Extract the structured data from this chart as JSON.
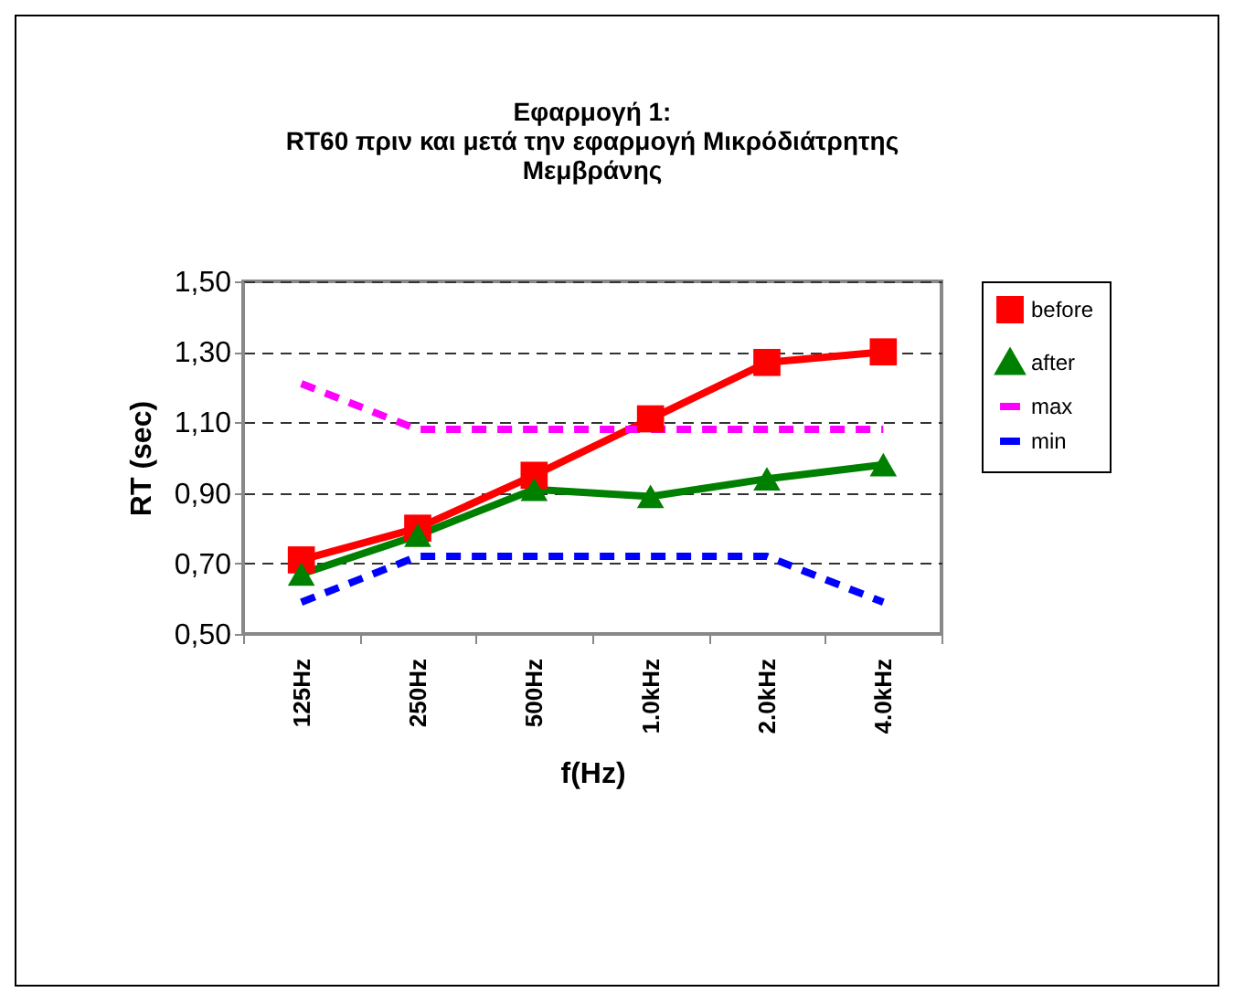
{
  "chart_data": {
    "type": "line",
    "title": "Εφαρμογή 1:\nRT60 πριν και μετά την εφαρμογή Μικρόδιάτρητης\nΜεμβράνης",
    "xlabel": "f(Hz)",
    "ylabel": "RT (sec)",
    "categories": [
      "125Hz",
      "250Hz",
      "500Hz",
      "1.0kHz",
      "2.0kHz",
      "4.0kHz"
    ],
    "series": [
      {
        "name": "before",
        "color": "#ff0000",
        "marker": "square",
        "line_style": "solid",
        "values": [
          0.71,
          0.8,
          0.95,
          1.11,
          1.27,
          1.3
        ]
      },
      {
        "name": "after",
        "color": "#008000",
        "marker": "triangle",
        "line_style": "solid",
        "values": [
          0.67,
          0.78,
          0.91,
          0.89,
          0.94,
          0.98
        ]
      },
      {
        "name": "max",
        "color": "#ff00ff",
        "marker": "none",
        "line_style": "dashed",
        "values": [
          1.21,
          1.08,
          1.08,
          1.08,
          1.08,
          1.08
        ]
      },
      {
        "name": "min",
        "color": "#0000ff",
        "marker": "none",
        "line_style": "dashed",
        "values": [
          0.59,
          0.72,
          0.72,
          0.72,
          0.72,
          0.59
        ]
      }
    ],
    "ylim": [
      0.5,
      1.5
    ],
    "yticks": [
      {
        "value": 0.5,
        "label": "0,50"
      },
      {
        "value": 0.7,
        "label": "0,70"
      },
      {
        "value": 0.9,
        "label": "0,90"
      },
      {
        "value": 1.1,
        "label": "1,10"
      },
      {
        "value": 1.3,
        "label": "1,30"
      },
      {
        "value": 1.5,
        "label": "1,50"
      }
    ],
    "grid": "y",
    "legend": "right"
  }
}
